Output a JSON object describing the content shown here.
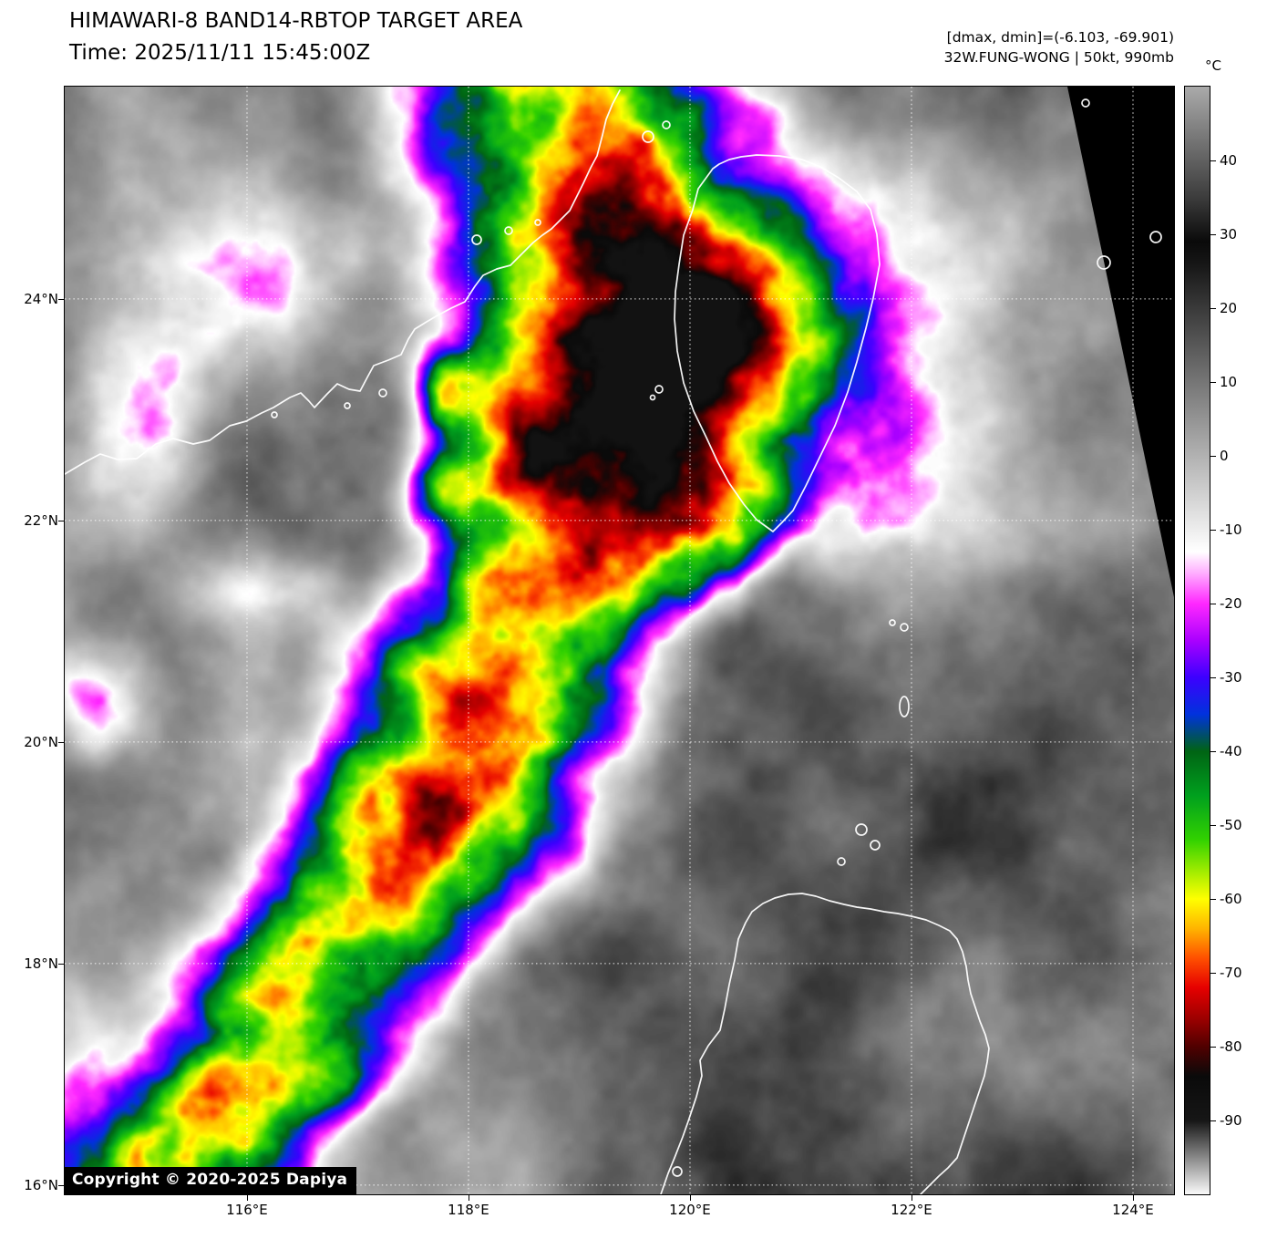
{
  "header": {
    "title": "HIMAWARI-8 BAND14-RBTOP TARGET AREA",
    "time_line": "Time: 2025/11/11 15:45:00Z",
    "dmax_dmin": "[dmax, dmin]=(-6.103, -69.901)",
    "storm_info": "32W.FUNG-WONG | 50kt, 990mb"
  },
  "map": {
    "copyright": "Copyright © 2020-2025 Dapiya",
    "grid_color": "#ffffff",
    "coast_color": "#ffffff",
    "lat_ticks": [
      {
        "label": "24°N",
        "deg": 24
      },
      {
        "label": "22°N",
        "deg": 22
      },
      {
        "label": "20°N",
        "deg": 20
      },
      {
        "label": "18°N",
        "deg": 18
      },
      {
        "label": "16°N",
        "deg": 16
      }
    ],
    "lon_ticks": [
      {
        "label": "116°E",
        "deg": 116
      },
      {
        "label": "118°E",
        "deg": 118
      },
      {
        "label": "120°E",
        "deg": 120
      },
      {
        "label": "122°E",
        "deg": 122
      },
      {
        "label": "124°E",
        "deg": 124
      }
    ]
  },
  "colorbar": {
    "unit": "°C",
    "domain": [
      50,
      -100
    ],
    "ticks": [
      {
        "label": "40",
        "value": 40
      },
      {
        "label": "30",
        "value": 30
      },
      {
        "label": "20",
        "value": 20
      },
      {
        "label": "10",
        "value": 10
      },
      {
        "label": "0",
        "value": 0
      },
      {
        "label": "-10",
        "value": -10
      },
      {
        "label": "-20",
        "value": -20
      },
      {
        "label": "-30",
        "value": -30
      },
      {
        "label": "-40",
        "value": -40
      },
      {
        "label": "-50",
        "value": -50
      },
      {
        "label": "-60",
        "value": -60
      },
      {
        "label": "-70",
        "value": -70
      },
      {
        "label": "-80",
        "value": -80
      },
      {
        "label": "-90",
        "value": -90
      }
    ],
    "stops": [
      {
        "t": 50,
        "c": "#aaaaaa"
      },
      {
        "t": 35,
        "c": "#3c3c3c"
      },
      {
        "t": 29,
        "c": "#0a0a0a"
      },
      {
        "t": 26,
        "c": "#161616"
      },
      {
        "t": -13,
        "c": "#ffffff"
      },
      {
        "t": -16,
        "c": "#ffaaff"
      },
      {
        "t": -20,
        "c": "#ff28ff"
      },
      {
        "t": -25,
        "c": "#aa00ff"
      },
      {
        "t": -30,
        "c": "#3c00ff"
      },
      {
        "t": -35,
        "c": "#0032dc"
      },
      {
        "t": -40,
        "c": "#006414"
      },
      {
        "t": -46,
        "c": "#00a01e"
      },
      {
        "t": -52,
        "c": "#32d200"
      },
      {
        "t": -57,
        "c": "#b4f000"
      },
      {
        "t": -60,
        "c": "#ffff00"
      },
      {
        "t": -64,
        "c": "#ffb400"
      },
      {
        "t": -68,
        "c": "#ff5000"
      },
      {
        "t": -72,
        "c": "#e60000"
      },
      {
        "t": -76,
        "c": "#a00000"
      },
      {
        "t": -80,
        "c": "#500000"
      },
      {
        "t": -84,
        "c": "#0a0a0a"
      },
      {
        "t": -90,
        "c": "#161616"
      },
      {
        "t": -100,
        "c": "#fafafa"
      }
    ]
  }
}
